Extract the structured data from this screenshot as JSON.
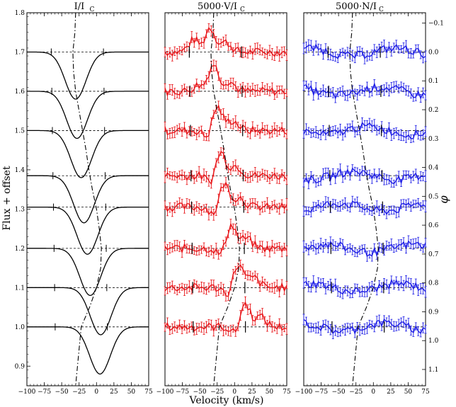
{
  "figure": {
    "ylabel": "Flux + offset",
    "xlabel": "Velocity (km/s)",
    "right_ylabel": "φ"
  },
  "chart_data": [
    {
      "type": "line",
      "title": "I/I",
      "title_sub": "C",
      "xlim": [
        -100,
        75
      ],
      "ylim": [
        0.85,
        1.8
      ],
      "xticks": [
        -100,
        -75,
        -50,
        -25,
        0,
        25,
        50,
        75
      ],
      "yticks": [
        0.9,
        1.0,
        1.1,
        1.2,
        1.3,
        1.4,
        1.5,
        1.6,
        1.7,
        1.8
      ],
      "xtick_labels": [
        "−100",
        "−75",
        "−50",
        "−25",
        "0",
        "25",
        "50",
        "75"
      ],
      "offsets": [
        1.7,
        1.6,
        1.5,
        1.385,
        1.305,
        1.2,
        1.1,
        1.0
      ],
      "centers": [
        -30,
        -28,
        -22,
        -18,
        -13,
        -9,
        6,
        5
      ],
      "depth": 0.12,
      "width": 15,
      "color": "#000000"
    },
    {
      "type": "line",
      "title": "5000·V/I",
      "title_sub": "C",
      "xlim": [
        -100,
        75
      ],
      "ylim": [
        0.85,
        1.8
      ],
      "xticks": [
        -100,
        -75,
        -50,
        -25,
        0,
        25,
        50,
        75
      ],
      "xtick_labels": [
        "−100",
        "−75",
        "−50",
        "−25",
        "0",
        "25",
        "50",
        "75"
      ],
      "offsets": [
        1.7,
        1.6,
        1.5,
        1.385,
        1.305,
        1.2,
        1.1,
        1.0
      ],
      "centers": [
        -35,
        -30,
        -25,
        -20,
        -15,
        -5,
        5,
        15
      ],
      "amplitude": 0.06,
      "color": "#e8171b"
    },
    {
      "type": "line",
      "title": "5000·N/I",
      "title_sub": "C",
      "xlim": [
        -100,
        75
      ],
      "ylim": [
        0.85,
        1.8
      ],
      "xticks": [
        -100,
        -75,
        -50,
        -25,
        0,
        25,
        50,
        75
      ],
      "xtick_labels": [
        "−100",
        "−75",
        "−50",
        "−25",
        "0",
        "25",
        "50",
        "75"
      ],
      "offsets": [
        1.7,
        1.6,
        1.5,
        1.385,
        1.305,
        1.2,
        1.1,
        1.0
      ],
      "right_yticks": [
        "−0.1",
        "0.0",
        "0.1",
        "0.2",
        "0.3",
        "0.4",
        "0.5",
        "0.6",
        "0.7",
        "0.8",
        "0.9",
        "1.0",
        "1.1"
      ],
      "right_ytick_values": [
        -0.1,
        0.0,
        0.1,
        0.2,
        0.3,
        0.4,
        0.5,
        0.6,
        0.7,
        0.8,
        0.9,
        1.0,
        1.1
      ],
      "color": "#1f1fe6"
    }
  ]
}
